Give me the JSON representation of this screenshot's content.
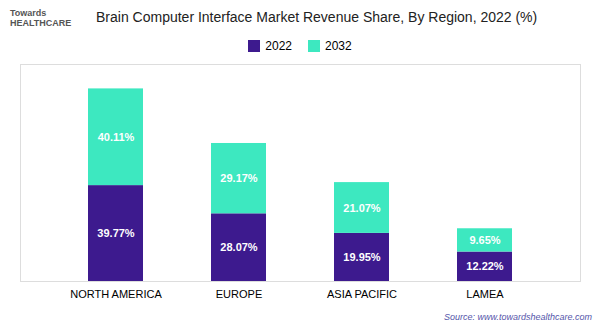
{
  "chart_data": {
    "type": "bar",
    "title": "Brain Computer Interface Market Revenue Share, By Region, 2022 (%)",
    "categories": [
      "NORTH AMERICA",
      "EUROPE",
      "ASIA PACIFIC",
      "LAMEA"
    ],
    "series": [
      {
        "name": "2022",
        "color": "#3d1a8e",
        "values": [
          39.77,
          28.07,
          19.95,
          12.22
        ],
        "value_labels": [
          "39.77%",
          "28.07%",
          "19.95%",
          "12.22%"
        ]
      },
      {
        "name": "2032",
        "color": "#3de8c0",
        "values": [
          40.11,
          29.17,
          21.07,
          9.65
        ],
        "value_labels": [
          "40.11%",
          "29.17%",
          "21.07%",
          "9.65%"
        ]
      }
    ],
    "ylim": [
      0,
      90
    ],
    "stacked": true,
    "data_labels": true,
    "legend": "upper center",
    "tick_labels": "x",
    "grid": false,
    "annotations": [
      "Towards\nHEALTHCARE",
      "Source: www.towardshealthcare.com"
    ]
  }
}
